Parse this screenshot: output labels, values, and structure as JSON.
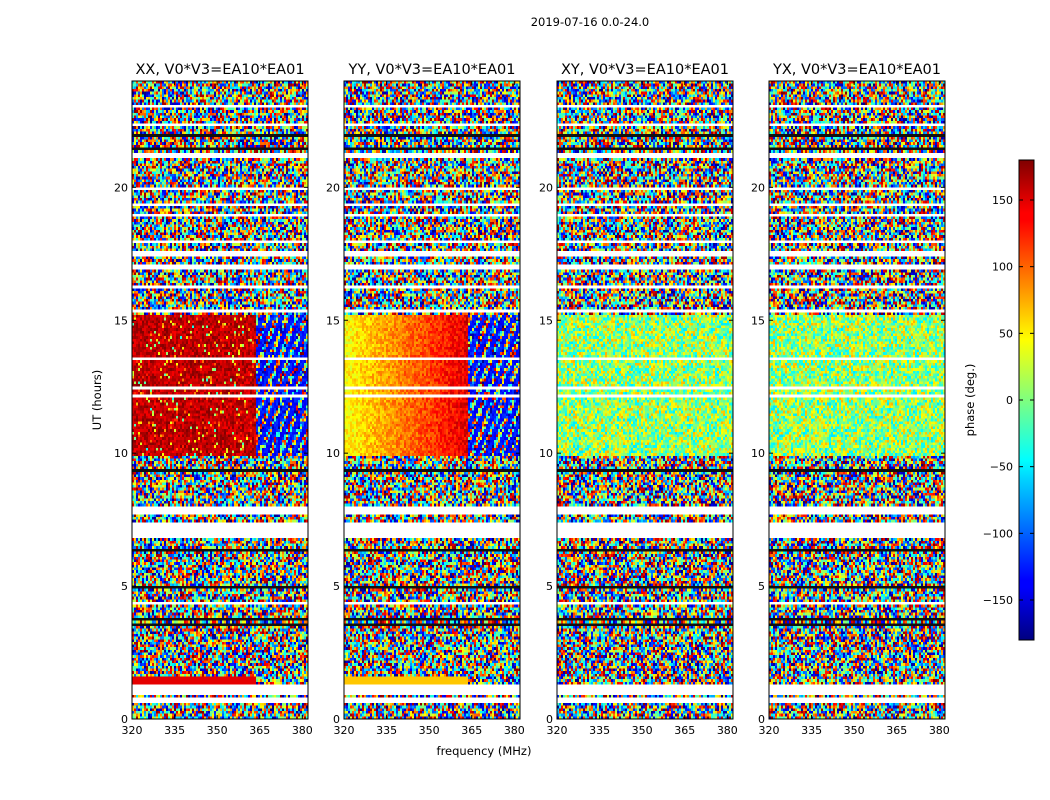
{
  "chart_data": {
    "type": "heatmap",
    "suptitle": "2019-07-16 0.0-24.0",
    "xlabel": "frequency (MHz)",
    "ylabel": "UT (hours)",
    "xlim": [
      320,
      382
    ],
    "ylim": [
      0,
      24
    ],
    "xticks": [
      {
        "value": 320,
        "label": "320"
      },
      {
        "value": 335,
        "label": "335"
      },
      {
        "value": 350,
        "label": "350"
      },
      {
        "value": 365,
        "label": "365"
      },
      {
        "value": 380,
        "label": "380"
      }
    ],
    "yticks": [
      {
        "value": 0,
        "label": "0"
      },
      {
        "value": 5,
        "label": "5"
      },
      {
        "value": 10,
        "label": "10"
      },
      {
        "value": 15,
        "label": "15"
      },
      {
        "value": 20,
        "label": "20"
      }
    ],
    "panels": [
      {
        "title": "XX, V0*V3=EA10*EA01",
        "mode": "xx"
      },
      {
        "title": "YY, V0*V3=EA10*EA01",
        "mode": "yy"
      },
      {
        "title": "XY, V0*V3=EA10*EA01",
        "mode": "xy"
      },
      {
        "title": "YX, V0*V3=EA10*EA01",
        "mode": "yx"
      }
    ],
    "colorbar": {
      "label": "phase (deg.)",
      "range": [
        -180,
        180
      ],
      "ticks": [
        {
          "value": 150,
          "label": "150"
        },
        {
          "value": 100,
          "label": "100"
        },
        {
          "value": 50,
          "label": "50"
        },
        {
          "value": 0,
          "label": "0"
        },
        {
          "value": -50,
          "label": "−50"
        },
        {
          "value": -100,
          "label": "−100"
        },
        {
          "value": -150,
          "label": "−150"
        }
      ],
      "colormap": "jet"
    },
    "structure": {
      "coherent_band_ut": [
        9.9,
        15.2
      ],
      "coherent_freq_max": 363.5,
      "flagged_ut_ranges": [
        [
          0.55,
          0.75
        ],
        [
          0.95,
          1.25
        ],
        [
          6.85,
          7.25
        ],
        [
          7.75,
          7.95
        ],
        [
          16.85,
          17.05
        ],
        [
          17.45,
          17.65
        ],
        [
          21.1,
          21.25
        ],
        [
          23.0,
          23.1
        ]
      ]
    }
  }
}
